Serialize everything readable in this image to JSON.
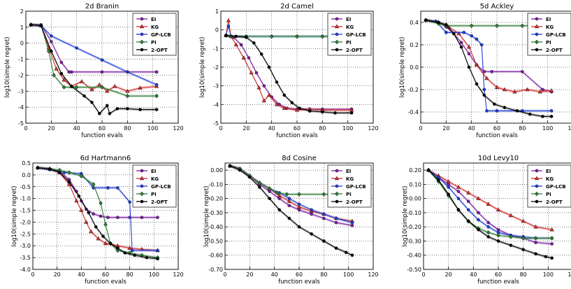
{
  "figure": {
    "legend_labels": [
      "EI",
      "KG",
      "GP-LCB",
      "PI",
      "2-OPT"
    ]
  },
  "colors": {
    "EI": "#7b1fa2",
    "KG": "#d32f2f",
    "GP-LCB": "#1e3fd6",
    "PI": "#2e7d32",
    "2-OPT": "#000000"
  },
  "chart_data": [
    {
      "type": "line",
      "title": "2d Branin",
      "xlabel": "function evals",
      "ylabel": "log10(simple regret)",
      "xlim": [
        0,
        120
      ],
      "ylim": [
        -5,
        2
      ],
      "xticks": [
        0,
        20,
        40,
        60,
        80,
        100,
        120
      ],
      "yticks": [
        -5,
        -4,
        -3,
        -2,
        -1,
        0,
        1,
        2
      ],
      "grid": true,
      "legend_position": "top-right",
      "series": [
        {
          "name": "EI",
          "x": [
            4,
            12,
            20,
            28,
            34,
            36,
            60,
            80,
            103
          ],
          "y": [
            1.15,
            1.15,
            0.1,
            -1.2,
            -1.8,
            -1.8,
            -1.8,
            -1.8,
            -1.8
          ]
        },
        {
          "name": "KG",
          "x": [
            4,
            12,
            18,
            24,
            30,
            36,
            44,
            52,
            58,
            64,
            70,
            80,
            90,
            103
          ],
          "y": [
            1.15,
            1.1,
            -0.3,
            -1.6,
            -2.3,
            -2.7,
            -2.4,
            -2.9,
            -2.6,
            -3.0,
            -2.7,
            -3.0,
            -2.8,
            -2.7
          ]
        },
        {
          "name": "GP-LCB",
          "x": [
            4,
            12,
            20,
            40,
            60,
            80,
            103
          ],
          "y": [
            1.15,
            1.1,
            0.45,
            -0.3,
            -1.05,
            -1.8,
            -2.6
          ]
        },
        {
          "name": "PI",
          "x": [
            4,
            12,
            18,
            22,
            30,
            40,
            60,
            80,
            103
          ],
          "y": [
            1.15,
            1.1,
            -0.5,
            -2.0,
            -2.75,
            -2.75,
            -2.75,
            -3.3,
            -3.3
          ]
        },
        {
          "name": "2-OPT",
          "x": [
            4,
            12,
            20,
            28,
            36,
            46,
            52,
            58,
            64,
            66,
            72,
            80,
            90,
            103
          ],
          "y": [
            1.15,
            1.1,
            -0.5,
            -1.9,
            -2.7,
            -3.3,
            -3.7,
            -4.4,
            -3.9,
            -4.4,
            -4.1,
            -4.1,
            -4.15,
            -4.15
          ]
        }
      ]
    },
    {
      "type": "line",
      "title": "2d Camel",
      "xlabel": "function evals",
      "ylabel": "log10(simple regret)",
      "xlim": [
        0,
        120
      ],
      "ylim": [
        -5,
        1
      ],
      "xticks": [
        0,
        20,
        40,
        60,
        80,
        100,
        120
      ],
      "yticks": [
        -5,
        -4,
        -3,
        -2,
        -1,
        0,
        1
      ],
      "grid": true,
      "legend_position": "top-right",
      "series": [
        {
          "name": "EI",
          "x": [
            4,
            10,
            16,
            22,
            28,
            34,
            40,
            46,
            52,
            60,
            70,
            80,
            103
          ],
          "y": [
            -0.3,
            -0.4,
            -0.8,
            -1.5,
            -2.3,
            -3.0,
            -3.6,
            -4.0,
            -4.2,
            -4.25,
            -4.25,
            -4.25,
            -4.25
          ]
        },
        {
          "name": "KG",
          "x": [
            4,
            6,
            8,
            12,
            18,
            24,
            30,
            34,
            38,
            44,
            50,
            60,
            70,
            80,
            103
          ],
          "y": [
            -0.3,
            0.5,
            -0.35,
            -0.8,
            -1.5,
            -2.3,
            -3.1,
            -3.8,
            -3.5,
            -4.0,
            -4.2,
            -4.3,
            -4.25,
            -4.3,
            -4.3
          ]
        },
        {
          "name": "GP-LCB",
          "x": [
            4,
            6,
            8,
            20,
            40,
            60,
            80,
            103
          ],
          "y": [
            -0.3,
            0.2,
            -0.35,
            -0.35,
            -0.35,
            -0.35,
            -0.35,
            -0.35
          ]
        },
        {
          "name": "PI",
          "x": [
            4,
            8,
            20,
            40,
            60,
            80,
            103
          ],
          "y": [
            -0.3,
            -0.35,
            -0.35,
            -0.35,
            -0.35,
            -0.35,
            -0.35
          ]
        },
        {
          "name": "2-OPT",
          "x": [
            4,
            12,
            20,
            26,
            32,
            38,
            44,
            50,
            56,
            62,
            70,
            80,
            90,
            103
          ],
          "y": [
            -0.3,
            -0.35,
            -0.4,
            -0.7,
            -1.3,
            -2.0,
            -2.8,
            -3.5,
            -3.9,
            -4.2,
            -4.35,
            -4.4,
            -4.45,
            -4.45
          ]
        }
      ]
    },
    {
      "type": "line",
      "title": "5d Ackley",
      "xlabel": "function evals",
      "ylabel": "log10(simple regret)",
      "xlim": [
        0,
        120
      ],
      "ylim": [
        -0.5,
        0.5
      ],
      "xticks": [
        0,
        20,
        40,
        60,
        80,
        100,
        120
      ],
      "yticks": [
        -0.4,
        -0.2,
        0.0,
        0.2,
        0.4
      ],
      "grid": true,
      "legend_position": "top-right",
      "series": [
        {
          "name": "EI",
          "x": [
            4,
            14,
            20,
            26,
            32,
            38,
            44,
            50,
            56,
            80,
            96,
            103
          ],
          "y": [
            0.42,
            0.4,
            0.36,
            0.3,
            0.22,
            0.12,
            0.02,
            -0.04,
            -0.04,
            -0.04,
            -0.2,
            -0.22
          ]
        },
        {
          "name": "KG",
          "x": [
            4,
            14,
            22,
            30,
            38,
            44,
            52,
            60,
            66,
            74,
            84,
            94,
            103
          ],
          "y": [
            0.42,
            0.4,
            0.36,
            0.3,
            0.18,
            0.02,
            -0.1,
            -0.18,
            -0.2,
            -0.22,
            -0.2,
            -0.22,
            -0.21
          ]
        },
        {
          "name": "GP-LCB",
          "x": [
            4,
            12,
            20,
            34,
            40,
            44,
            48,
            50,
            52,
            60,
            80,
            103
          ],
          "y": [
            0.42,
            0.41,
            0.31,
            0.31,
            0.28,
            0.25,
            0.2,
            -0.2,
            -0.39,
            -0.39,
            -0.39,
            -0.39
          ]
        },
        {
          "name": "PI",
          "x": [
            4,
            14,
            20,
            40,
            60,
            80,
            103
          ],
          "y": [
            0.42,
            0.39,
            0.37,
            0.37,
            0.37,
            0.37,
            0.37
          ]
        },
        {
          "name": "2-OPT",
          "x": [
            4,
            14,
            20,
            26,
            32,
            38,
            44,
            50,
            58,
            66,
            76,
            86,
            96,
            103
          ],
          "y": [
            0.42,
            0.4,
            0.38,
            0.3,
            0.18,
            0.0,
            -0.15,
            -0.25,
            -0.33,
            -0.36,
            -0.39,
            -0.42,
            -0.44,
            -0.44
          ]
        }
      ]
    },
    {
      "type": "line",
      "title": "6d Hartmann6",
      "xlabel": "function evals",
      "ylabel": "log10(simple regret)",
      "xlim": [
        0,
        120
      ],
      "ylim": [
        -4.0,
        0.5
      ],
      "xticks": [
        0,
        20,
        40,
        60,
        80,
        100,
        120
      ],
      "yticks": [
        -4.0,
        -3.5,
        -3.0,
        -2.5,
        -2.0,
        -1.5,
        -1.0,
        -0.5,
        0.0,
        0.5
      ],
      "grid": true,
      "legend_position": "top-right",
      "series": [
        {
          "name": "EI",
          "x": [
            4,
            14,
            22,
            30,
            36,
            40,
            44,
            50,
            56,
            62,
            70,
            80,
            90,
            103
          ],
          "y": [
            0.3,
            0.25,
            0.15,
            -0.2,
            -0.7,
            -1.1,
            -1.45,
            -1.65,
            -1.75,
            -1.8,
            -1.8,
            -1.8,
            -1.8,
            -1.8
          ]
        },
        {
          "name": "KG",
          "x": [
            4,
            14,
            22,
            30,
            36,
            40,
            44,
            48,
            54,
            60,
            70,
            80,
            90,
            103
          ],
          "y": [
            0.3,
            0.25,
            0.1,
            -0.4,
            -1.1,
            -1.5,
            -2.0,
            -2.4,
            -2.7,
            -2.9,
            -3.0,
            -3.1,
            -3.15,
            -3.2
          ]
        },
        {
          "name": "GP-LCB",
          "x": [
            4,
            14,
            26,
            40,
            50,
            62,
            70,
            80,
            82,
            103
          ],
          "y": [
            0.3,
            0.22,
            0.1,
            0.05,
            -0.55,
            -0.55,
            -0.55,
            -1.15,
            -3.2,
            -3.2
          ]
        },
        {
          "name": "PI",
          "x": [
            4,
            14,
            22,
            30,
            40,
            50,
            56,
            60,
            64,
            70,
            80,
            90,
            103
          ],
          "y": [
            0.3,
            0.25,
            0.2,
            0.1,
            -0.05,
            -0.4,
            -1.2,
            -2.1,
            -2.9,
            -3.2,
            -3.3,
            -3.4,
            -3.5
          ]
        },
        {
          "name": "2-OPT",
          "x": [
            4,
            14,
            22,
            30,
            38,
            46,
            52,
            58,
            64,
            70,
            76,
            84,
            94,
            103
          ],
          "y": [
            0.3,
            0.25,
            0.1,
            -0.3,
            -0.9,
            -1.6,
            -2.2,
            -2.6,
            -2.9,
            -3.1,
            -3.3,
            -3.4,
            -3.5,
            -3.55
          ]
        }
      ]
    },
    {
      "type": "line",
      "title": "8d Cosine",
      "xlabel": "function evals",
      "ylabel": "log10(simple regret)",
      "xlim": [
        0,
        120
      ],
      "ylim": [
        -0.7,
        0.05
      ],
      "xticks": [
        0,
        20,
        40,
        60,
        80,
        100,
        120
      ],
      "yticks": [
        -0.7,
        -0.6,
        -0.5,
        -0.4,
        -0.3,
        -0.2,
        -0.1,
        0.0
      ],
      "grid": true,
      "legend_position": "top-right",
      "series": [
        {
          "name": "EI",
          "x": [
            4,
            12,
            20,
            28,
            36,
            44,
            52,
            60,
            70,
            80,
            90,
            103
          ],
          "y": [
            0.03,
            0.01,
            -0.04,
            -0.1,
            -0.15,
            -0.2,
            -0.25,
            -0.28,
            -0.31,
            -0.34,
            -0.37,
            -0.39
          ]
        },
        {
          "name": "KG",
          "x": [
            4,
            12,
            20,
            28,
            36,
            44,
            52,
            60,
            70,
            80,
            90,
            103
          ],
          "y": [
            0.03,
            0.01,
            -0.04,
            -0.09,
            -0.13,
            -0.18,
            -0.22,
            -0.26,
            -0.29,
            -0.31,
            -0.34,
            -0.36
          ]
        },
        {
          "name": "GP-LCB",
          "x": [
            4,
            12,
            20,
            28,
            36,
            44,
            52,
            60,
            70,
            80,
            90,
            103
          ],
          "y": [
            0.03,
            0.01,
            -0.04,
            -0.09,
            -0.13,
            -0.16,
            -0.2,
            -0.24,
            -0.28,
            -0.31,
            -0.34,
            -0.37
          ]
        },
        {
          "name": "PI",
          "x": [
            4,
            12,
            20,
            28,
            36,
            42,
            50,
            60,
            80,
            103
          ],
          "y": [
            0.03,
            0.01,
            -0.04,
            -0.09,
            -0.13,
            -0.16,
            -0.17,
            -0.17,
            -0.17,
            -0.17
          ]
        },
        {
          "name": "2-OPT",
          "x": [
            4,
            12,
            20,
            28,
            36,
            44,
            52,
            60,
            70,
            80,
            90,
            98,
            103
          ],
          "y": [
            0.03,
            0.0,
            -0.05,
            -0.12,
            -0.2,
            -0.28,
            -0.34,
            -0.4,
            -0.45,
            -0.5,
            -0.55,
            -0.58,
            -0.6
          ]
        }
      ]
    },
    {
      "type": "line",
      "title": "10d Levy10",
      "xlabel": "function evals",
      "ylabel": "log10(simple regret)",
      "xlim": [
        0,
        120
      ],
      "ylim": [
        -0.5,
        0.25
      ],
      "xticks": [
        0,
        20,
        40,
        60,
        80,
        100,
        120
      ],
      "yticks": [
        -0.5,
        -0.4,
        -0.3,
        -0.2,
        -0.1,
        0.0,
        0.1,
        0.2
      ],
      "grid": true,
      "legend_position": "top-right",
      "series": [
        {
          "name": "EI",
          "x": [
            4,
            12,
            20,
            28,
            36,
            44,
            52,
            60,
            70,
            80,
            90,
            103
          ],
          "y": [
            0.2,
            0.15,
            0.1,
            0.05,
            -0.02,
            -0.1,
            -0.17,
            -0.22,
            -0.26,
            -0.28,
            -0.31,
            -0.32
          ]
        },
        {
          "name": "KG",
          "x": [
            4,
            12,
            20,
            28,
            36,
            44,
            52,
            60,
            70,
            80,
            90,
            103
          ],
          "y": [
            0.2,
            0.16,
            0.12,
            0.08,
            0.04,
            0.0,
            -0.04,
            -0.08,
            -0.12,
            -0.16,
            -0.2,
            -0.22
          ]
        },
        {
          "name": "GP-LCB",
          "x": [
            4,
            12,
            20,
            28,
            36,
            44,
            52,
            60,
            70,
            80,
            90,
            103
          ],
          "y": [
            0.2,
            0.15,
            0.08,
            0.0,
            -0.08,
            -0.15,
            -0.2,
            -0.24,
            -0.26,
            -0.27,
            -0.28,
            -0.28
          ]
        },
        {
          "name": "PI",
          "x": [
            4,
            12,
            20,
            28,
            36,
            44,
            52,
            60,
            70,
            80,
            90,
            103
          ],
          "y": [
            0.2,
            0.12,
            0.02,
            -0.08,
            -0.16,
            -0.21,
            -0.24,
            -0.26,
            -0.27,
            -0.28,
            -0.28,
            -0.28
          ]
        },
        {
          "name": "2-OPT",
          "x": [
            4,
            12,
            20,
            28,
            36,
            44,
            52,
            60,
            70,
            80,
            90,
            98,
            103
          ],
          "y": [
            0.2,
            0.13,
            0.03,
            -0.08,
            -0.16,
            -0.22,
            -0.27,
            -0.3,
            -0.33,
            -0.36,
            -0.39,
            -0.41,
            -0.42
          ]
        }
      ]
    }
  ]
}
